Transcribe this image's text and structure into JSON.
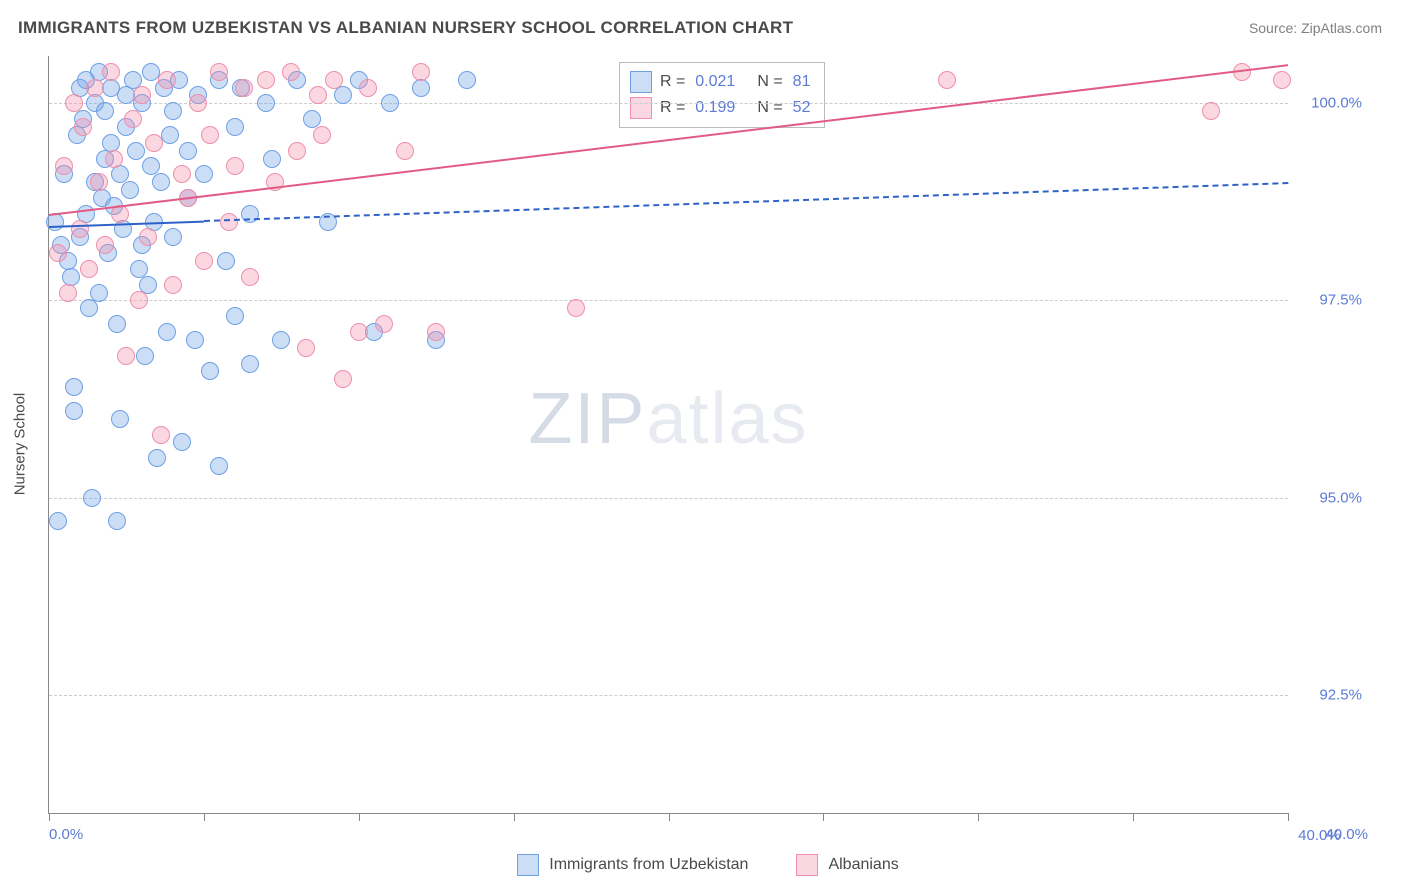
{
  "header": {
    "title": "IMMIGRANTS FROM UZBEKISTAN VS ALBANIAN NURSERY SCHOOL CORRELATION CHART",
    "source": "Source: ZipAtlas.com"
  },
  "chart": {
    "type": "scatter",
    "y_axis_label": "Nursery School",
    "xlim": [
      0,
      40
    ],
    "ylim": [
      91,
      100.6
    ],
    "x_ticks": [
      0,
      5,
      10,
      15,
      20,
      25,
      30,
      35,
      40
    ],
    "x_tick_labels": {
      "0": "0.0%",
      "40": "40.0%"
    },
    "y_gridlines": [
      92.5,
      95.0,
      97.5,
      100.0
    ],
    "y_tick_labels": [
      "92.5%",
      "95.0%",
      "97.5%",
      "100.0%"
    ],
    "background_color": "#ffffff",
    "grid_color": "#cccccc",
    "axis_color": "#888888",
    "tick_label_color": "#5b7bd5",
    "marker_radius": 9,
    "series": [
      {
        "name": "Immigrants from Uzbekistan",
        "color_fill": "rgba(110,160,230,0.35)",
        "color_stroke": "#6ea0e6",
        "R": "0.021",
        "N": "81",
        "trend": {
          "x1": 0,
          "y1": 98.45,
          "x2": 40,
          "y2": 99.0,
          "solid_until_x": 5,
          "color": "#2f62c9",
          "width": 2.2
        },
        "points": [
          [
            0.2,
            98.5
          ],
          [
            0.3,
            94.7
          ],
          [
            0.4,
            98.2
          ],
          [
            0.5,
            99.1
          ],
          [
            0.6,
            98.0
          ],
          [
            0.7,
            97.8
          ],
          [
            0.8,
            96.1
          ],
          [
            0.8,
            96.4
          ],
          [
            0.9,
            99.6
          ],
          [
            1.0,
            100.2
          ],
          [
            1.0,
            98.3
          ],
          [
            1.1,
            99.8
          ],
          [
            1.2,
            100.3
          ],
          [
            1.2,
            98.6
          ],
          [
            1.3,
            97.4
          ],
          [
            1.4,
            95.0
          ],
          [
            1.5,
            99.0
          ],
          [
            1.5,
            100.0
          ],
          [
            1.6,
            100.4
          ],
          [
            1.6,
            97.6
          ],
          [
            1.7,
            98.8
          ],
          [
            1.8,
            99.3
          ],
          [
            1.8,
            99.9
          ],
          [
            1.9,
            98.1
          ],
          [
            2.0,
            99.5
          ],
          [
            2.0,
            100.2
          ],
          [
            2.1,
            98.7
          ],
          [
            2.2,
            97.2
          ],
          [
            2.2,
            94.7
          ],
          [
            2.3,
            96.0
          ],
          [
            2.3,
            99.1
          ],
          [
            2.4,
            98.4
          ],
          [
            2.5,
            100.1
          ],
          [
            2.5,
            99.7
          ],
          [
            2.6,
            98.9
          ],
          [
            2.7,
            100.3
          ],
          [
            2.8,
            99.4
          ],
          [
            2.9,
            97.9
          ],
          [
            3.0,
            98.2
          ],
          [
            3.0,
            100.0
          ],
          [
            3.1,
            96.8
          ],
          [
            3.2,
            97.7
          ],
          [
            3.3,
            100.4
          ],
          [
            3.3,
            99.2
          ],
          [
            3.4,
            98.5
          ],
          [
            3.5,
            95.5
          ],
          [
            3.6,
            99.0
          ],
          [
            3.7,
            100.2
          ],
          [
            3.8,
            97.1
          ],
          [
            3.9,
            99.6
          ],
          [
            4.0,
            98.3
          ],
          [
            4.0,
            99.9
          ],
          [
            4.2,
            100.3
          ],
          [
            4.3,
            95.7
          ],
          [
            4.5,
            98.8
          ],
          [
            4.5,
            99.4
          ],
          [
            4.7,
            97.0
          ],
          [
            4.8,
            100.1
          ],
          [
            5.0,
            99.1
          ],
          [
            5.2,
            96.6
          ],
          [
            5.5,
            95.4
          ],
          [
            5.5,
            100.3
          ],
          [
            5.7,
            98.0
          ],
          [
            6.0,
            99.7
          ],
          [
            6.0,
            97.3
          ],
          [
            6.2,
            100.2
          ],
          [
            6.5,
            96.7
          ],
          [
            6.5,
            98.6
          ],
          [
            7.0,
            100.0
          ],
          [
            7.2,
            99.3
          ],
          [
            7.5,
            97.0
          ],
          [
            8.0,
            100.3
          ],
          [
            8.5,
            99.8
          ],
          [
            9.0,
            98.5
          ],
          [
            9.5,
            100.1
          ],
          [
            10.0,
            100.3
          ],
          [
            10.5,
            97.1
          ],
          [
            11.0,
            100.0
          ],
          [
            12.0,
            100.2
          ],
          [
            12.5,
            97.0
          ],
          [
            13.5,
            100.3
          ]
        ]
      },
      {
        "name": "Albanians",
        "color_fill": "rgba(240,140,170,0.35)",
        "color_stroke": "#ef8fab",
        "R": "0.199",
        "N": "52",
        "trend": {
          "x1": 0,
          "y1": 98.6,
          "x2": 40,
          "y2": 100.5,
          "solid_until_x": 40,
          "color": "#e25b85",
          "width": 2.4
        },
        "points": [
          [
            0.3,
            98.1
          ],
          [
            0.5,
            99.2
          ],
          [
            0.6,
            97.6
          ],
          [
            0.8,
            100.0
          ],
          [
            1.0,
            98.4
          ],
          [
            1.1,
            99.7
          ],
          [
            1.3,
            97.9
          ],
          [
            1.5,
            100.2
          ],
          [
            1.6,
            99.0
          ],
          [
            1.8,
            98.2
          ],
          [
            2.0,
            100.4
          ],
          [
            2.1,
            99.3
          ],
          [
            2.3,
            98.6
          ],
          [
            2.5,
            96.8
          ],
          [
            2.7,
            99.8
          ],
          [
            2.9,
            97.5
          ],
          [
            3.0,
            100.1
          ],
          [
            3.2,
            98.3
          ],
          [
            3.4,
            99.5
          ],
          [
            3.6,
            95.8
          ],
          [
            3.8,
            100.3
          ],
          [
            4.0,
            97.7
          ],
          [
            4.3,
            99.1
          ],
          [
            4.5,
            98.8
          ],
          [
            4.8,
            100.0
          ],
          [
            5.0,
            98.0
          ],
          [
            5.2,
            99.6
          ],
          [
            5.5,
            100.4
          ],
          [
            5.8,
            98.5
          ],
          [
            6.0,
            99.2
          ],
          [
            6.3,
            100.2
          ],
          [
            6.5,
            97.8
          ],
          [
            7.0,
            100.3
          ],
          [
            7.3,
            99.0
          ],
          [
            7.8,
            100.4
          ],
          [
            8.0,
            99.4
          ],
          [
            8.3,
            96.9
          ],
          [
            8.7,
            100.1
          ],
          [
            8.8,
            99.6
          ],
          [
            9.2,
            100.3
          ],
          [
            9.5,
            96.5
          ],
          [
            10.0,
            97.1
          ],
          [
            10.3,
            100.2
          ],
          [
            10.8,
            97.2
          ],
          [
            11.5,
            99.4
          ],
          [
            12.0,
            100.4
          ],
          [
            12.5,
            97.1
          ],
          [
            17.0,
            97.4
          ],
          [
            29.0,
            100.3
          ],
          [
            37.5,
            99.9
          ],
          [
            38.5,
            100.4
          ],
          [
            39.8,
            100.3
          ]
        ]
      }
    ],
    "legend_box": {
      "border_color": "#bbbbbb"
    },
    "watermark": {
      "text_a": "ZIP",
      "text_b": "atlas"
    }
  }
}
